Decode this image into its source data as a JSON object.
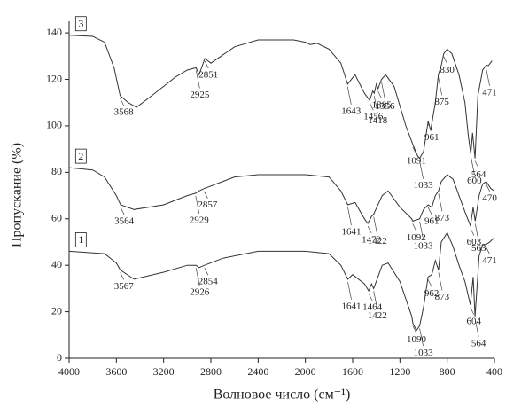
{
  "chart_data": {
    "type": "line",
    "x_label": "Волновое число (см⁻¹)",
    "y_label": "Пропускание (%)",
    "xlim": [
      4000,
      400
    ],
    "xticks": [
      4000,
      3600,
      3200,
      2800,
      2400,
      2000,
      1600,
      1200,
      800,
      400
    ],
    "ylim": [
      0,
      145
    ],
    "yticks": [
      0,
      20,
      40,
      60,
      80,
      100,
      120,
      140
    ],
    "series": [
      {
        "name": "3",
        "color": "#333333",
        "x": [
          4000,
          3800,
          3700,
          3620,
          3568,
          3500,
          3430,
          3300,
          3100,
          3000,
          2925,
          2900,
          2851,
          2800,
          2600,
          2400,
          2100,
          2000,
          1960,
          1900,
          1800,
          1700,
          1643,
          1580,
          1500,
          1456,
          1430,
          1418,
          1400,
          1385,
          1356,
          1320,
          1250,
          1150,
          1091,
          1050,
          1033,
          1000,
          961,
          940,
          900,
          875,
          850,
          830,
          800,
          760,
          700,
          650,
          620,
          600,
          585,
          564,
          540,
          500,
          471,
          450,
          420
        ],
        "values": [
          139,
          138.5,
          136,
          125,
          113,
          110,
          108,
          113,
          121,
          124,
          125,
          122,
          129,
          127,
          134,
          137,
          137,
          136,
          135,
          135.5,
          133,
          127,
          118,
          122,
          114,
          111,
          115,
          114,
          118,
          116,
          120,
          122,
          117,
          100,
          92,
          87,
          86,
          89,
          102,
          98,
          110,
          122,
          126,
          131,
          133,
          131,
          122,
          110,
          95,
          88,
          97,
          86,
          113,
          124,
          126,
          126,
          128
        ]
      },
      {
        "name": "2",
        "color": "#333333",
        "x": [
          4000,
          3800,
          3700,
          3600,
          3564,
          3450,
          3200,
          3000,
          2929,
          2900,
          2857,
          2600,
          2400,
          2100,
          2000,
          1800,
          1700,
          1641,
          1580,
          1500,
          1472,
          1440,
          1422,
          1350,
          1300,
          1200,
          1100,
          1092,
          1033,
          1000,
          961,
          930,
          900,
          873,
          850,
          800,
          750,
          700,
          650,
          603,
          580,
          563,
          530,
          500,
          470,
          430,
          400
        ],
        "values": [
          82,
          81,
          78,
          70,
          66,
          64,
          66,
          70,
          71,
          72,
          73,
          78,
          79,
          79,
          79,
          78,
          72,
          66,
          67,
          60,
          58,
          61,
          62,
          70,
          72,
          65,
          60,
          59,
          60,
          64,
          66,
          65,
          70,
          72,
          76,
          79,
          77,
          70,
          63,
          57,
          65,
          59,
          70,
          75,
          76,
          73,
          72
        ]
      },
      {
        "name": "1",
        "color": "#333333",
        "x": [
          4000,
          3700,
          3600,
          3567,
          3450,
          3200,
          3000,
          2926,
          2900,
          2854,
          2700,
          2400,
          2000,
          1800,
          1700,
          1641,
          1600,
          1500,
          1464,
          1440,
          1422,
          1350,
          1300,
          1200,
          1100,
          1090,
          1060,
          1033,
          1000,
          962,
          930,
          900,
          873,
          850,
          800,
          750,
          700,
          650,
          604,
          580,
          564,
          530,
          500,
          471,
          440,
          400
        ],
        "values": [
          46,
          45,
          41,
          38,
          34,
          37,
          40,
          40,
          39,
          40,
          43,
          46,
          46,
          45,
          40,
          34,
          36,
          32,
          29,
          32,
          30,
          40,
          41,
          33,
          18,
          15,
          12,
          14,
          22,
          35,
          36,
          42,
          38,
          50,
          54,
          48,
          40,
          33,
          23,
          35,
          18,
          44,
          49,
          49,
          50,
          52
        ]
      }
    ],
    "peaks": [
      [
        3568,
        2925,
        2851,
        1643,
        1456,
        1418,
        1385,
        1356,
        1091,
        1033,
        961,
        875,
        830,
        600,
        564,
        471
      ],
      [
        3564,
        2929,
        2857,
        1641,
        1472,
        1422,
        1092,
        1033,
        961,
        873,
        603,
        563,
        470
      ],
      [
        3567,
        2926,
        2854,
        1641,
        1464,
        1422,
        1090,
        1033,
        962,
        873,
        604,
        564,
        471
      ]
    ]
  }
}
